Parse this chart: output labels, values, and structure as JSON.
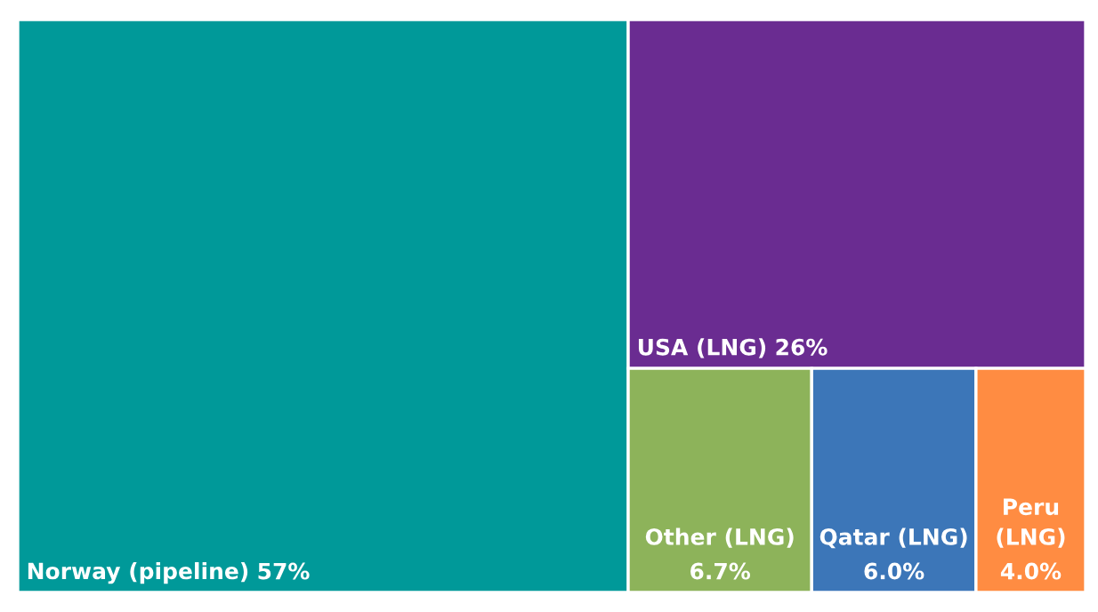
{
  "chart_data": {
    "type": "other",
    "categories": [
      "Norway (pipeline)",
      "USA (LNG)",
      "Other (LNG)",
      "Qatar (LNG)",
      "Peru (LNG)"
    ],
    "values": [
      57,
      26,
      6.7,
      6.0,
      4.0
    ],
    "value_labels": [
      "57%",
      "26%",
      "6.7%",
      "6.0%",
      "4.0%"
    ],
    "colors": [
      "#009999",
      "#6a2c91",
      "#8db35a",
      "#3c76b8",
      "#ff8c42"
    ]
  }
}
